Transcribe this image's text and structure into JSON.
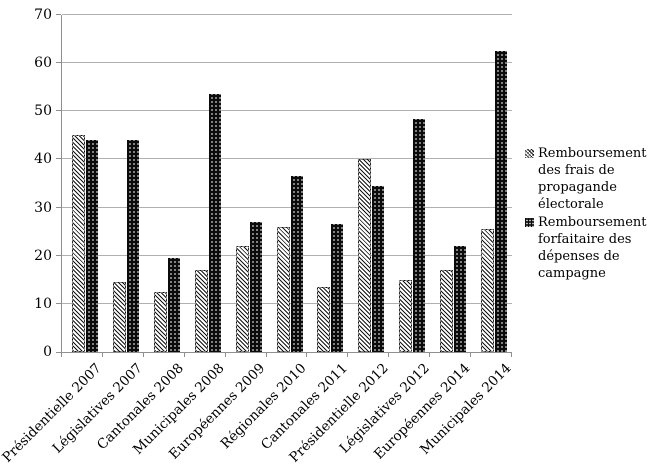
{
  "chart_data": {
    "type": "bar",
    "title": "",
    "xlabel": "",
    "ylabel": "",
    "categories": [
      "Présidentielle 2007",
      "Législatives 2007",
      "Cantonales 2008",
      "Municipales 2008",
      "Européennes 2009",
      "Régionales 2010",
      "Cantonales 2011",
      "Présidentielle 2012",
      "Législatives 2012",
      "Européennes 2014",
      "Municipales 2014"
    ],
    "series": [
      {
        "name": "Remboursement des frais de propagande électorale",
        "pattern": "diagonal-hatch",
        "legend_lines": [
          "Remboursement",
          "des frais de",
          "propagande",
          "électorale"
        ],
        "values": [
          45,
          14.5,
          12.5,
          17,
          22,
          26,
          13.5,
          40,
          15,
          17,
          25.5
        ]
      },
      {
        "name": "Remboursement forfaitaire des dépenses de campagne",
        "pattern": "black-dotted",
        "legend_lines": [
          "Remboursement",
          "forfaitaire des",
          "dépenses de",
          "campagne"
        ],
        "values": [
          44,
          44,
          19.5,
          53.5,
          27,
          36.5,
          26.5,
          34.5,
          48.5,
          22,
          62.5
        ]
      }
    ],
    "ylim": [
      0,
      70
    ],
    "yticks": [
      0,
      10,
      20,
      30,
      40,
      50,
      60,
      70
    ],
    "grid": "horizontal",
    "legend_position": "right",
    "colors": {
      "gridline": "#b0b0b0",
      "axis": "#8f8f8f",
      "bar_fill_dark": "#0b0b0b",
      "text": "#000000",
      "background": "#ffffff"
    }
  }
}
